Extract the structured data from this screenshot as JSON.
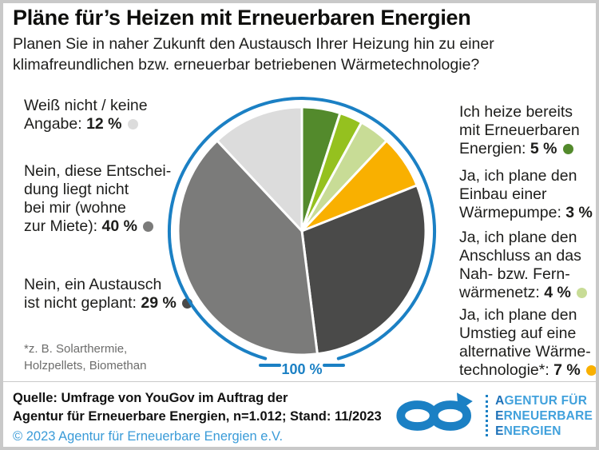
{
  "header": {
    "title": "Pläne für’s Heizen mit Erneuerbaren Energien",
    "subtitle_line1": "Planen Sie in naher Zukunft den Austausch Ihrer Heizung hin zu einer",
    "subtitle_line2": "klimafreundlichen bzw. erneuerbar betriebenen Wärmetechnologie?"
  },
  "chart_data": {
    "type": "pie",
    "title": "Pläne für’s Heizen mit Erneuerbaren Energien",
    "unit": "%",
    "start_angle_deg": 0,
    "direction": "clockwise",
    "total_label": "100 %",
    "ring_color": "#1b80c4",
    "slices": [
      {
        "label": "Ich heize bereits mit Erneuerbaren Energien",
        "value": 5,
        "color": "#538a2c"
      },
      {
        "label": "Ja, ich plane den Einbau einer Wärmepumpe",
        "value": 3,
        "color": "#95c11f"
      },
      {
        "label": "Ja, ich plane den Anschluss an das Nah- bzw. Fernwärmenetz",
        "value": 4,
        "color": "#c8dc96"
      },
      {
        "label": "Ja, ich plane den Umstieg auf eine alternative Wärmetechnologie*",
        "value": 7,
        "color": "#f9b000"
      },
      {
        "label": "Nein, ein Austausch ist nicht geplant",
        "value": 29,
        "color": "#4a4a49"
      },
      {
        "label": "Nein, diese Entscheidung liegt nicht bei mir (wohne zur Miete)",
        "value": 40,
        "color": "#7b7b7a"
      },
      {
        "label": "Weiß nicht / keine Angabe",
        "value": 12,
        "color": "#dcdcdc"
      }
    ]
  },
  "callouts": {
    "left": [
      {
        "lines": [
          "Weiß nicht / keine",
          "Angabe:"
        ],
        "value": "12 %",
        "dot_color": "#dcdcdc"
      },
      {
        "lines": [
          "Nein, diese Entschei-",
          "dung liegt nicht",
          "bei mir (wohne",
          "zur Miete):"
        ],
        "value": "40 %",
        "dot_color": "#7b7b7a"
      },
      {
        "lines": [
          "Nein, ein Austausch",
          "ist nicht geplant:"
        ],
        "value": "29 %",
        "dot_color": "#4a4a49"
      }
    ],
    "right": [
      {
        "lines": [
          "Ich heize bereits",
          "mit Erneuerbaren",
          "Energien:"
        ],
        "value": "5 %",
        "dot_color": "#538a2c"
      },
      {
        "lines": [
          "Ja, ich plane den",
          "Einbau einer",
          "Wärmepumpe:"
        ],
        "value": "3 %",
        "dot_color": "#95c11f"
      },
      {
        "lines": [
          "Ja, ich plane den",
          "Anschluss an das",
          "Nah- bzw. Fern-",
          "wärmenetz:"
        ],
        "value": "4 %",
        "dot_color": "#c8dc96"
      },
      {
        "lines": [
          "Ja, ich plane den",
          "Umstieg auf eine",
          "alternative Wärme-",
          "technologie*:"
        ],
        "value": "7 %",
        "dot_color": "#f9b000"
      }
    ]
  },
  "footnote": {
    "line1": "*z. B. Solarthermie,",
    "line2": "Holzpellets, Biomethan"
  },
  "footer": {
    "source_line1": "Quelle: Umfrage von YouGov im Auftrag der",
    "source_line2": "Agentur für Erneuerbare Energien, n=1.012; Stand: 11/2023",
    "copyright": "© 2023 Agentur für Erneuerbare Energien e.V.",
    "logo_lines": [
      "AGENTUR FÜR",
      "ERNEUERBARE",
      "ENERGIEN"
    ]
  },
  "icons": {
    "infinity_logo": "infinity-arrow-icon"
  }
}
